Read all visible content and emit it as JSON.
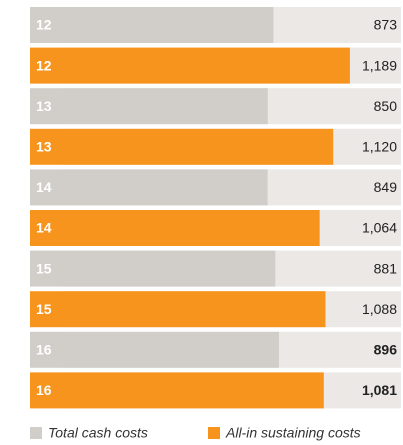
{
  "chart_data": {
    "type": "bar",
    "orientation": "horizontal",
    "categories": [
      "12",
      "13",
      "14",
      "15",
      "16"
    ],
    "series": [
      {
        "name": "Total cash costs",
        "color": "#d1cdc9",
        "values": [
          873,
          850,
          849,
          881,
          896
        ],
        "value_labels": [
          "873",
          "850",
          "849",
          "881",
          "896"
        ]
      },
      {
        "name": "All-in sustaining costs",
        "color": "#f7941d",
        "values": [
          1189,
          1120,
          1064,
          1088,
          1081
        ],
        "value_labels": [
          "1,189",
          "1,120",
          "1,064",
          "1,088",
          "1,081"
        ]
      }
    ],
    "xlim": [
      0,
      1400
    ],
    "track_color": "#ebe8e5",
    "bold": [
      false,
      false,
      false,
      false,
      true
    ],
    "legend": "bottom"
  }
}
